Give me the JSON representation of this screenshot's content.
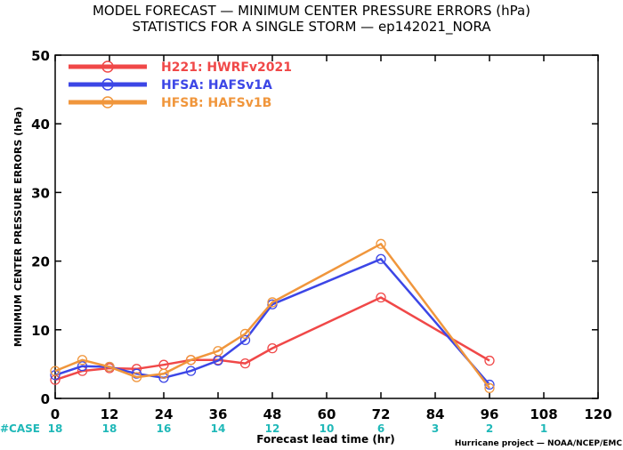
{
  "chart_data": {
    "type": "line",
    "title": "MODEL FORECAST — MINIMUM CENTER PRESSURE ERRORS (hPa)",
    "subtitle": "STATISTICS FOR A SINGLE STORM — ep142021_NORA",
    "xlabel": "Forecast lead time (hr)",
    "ylabel": "MINIMUM CENTER PRESSURE ERRORS (hPa)",
    "xlim": [
      0,
      120
    ],
    "ylim": [
      0,
      50
    ],
    "xticks": [
      0,
      12,
      24,
      36,
      48,
      60,
      72,
      84,
      96,
      108,
      120
    ],
    "yticks": [
      0,
      10,
      20,
      30,
      40,
      50
    ],
    "legend_position": "top-left",
    "case_label": "#CASE",
    "cases": [
      {
        "x": 0,
        "n": "18"
      },
      {
        "x": 12,
        "n": "18"
      },
      {
        "x": 24,
        "n": "16"
      },
      {
        "x": 36,
        "n": "14"
      },
      {
        "x": 48,
        "n": "12"
      },
      {
        "x": 60,
        "n": "10"
      },
      {
        "x": 72,
        "n": "6"
      },
      {
        "x": 84,
        "n": "3"
      },
      {
        "x": 96,
        "n": "2"
      },
      {
        "x": 108,
        "n": "1"
      }
    ],
    "credit": "Hurricane project — NOAA/NCEP/EMC",
    "series": [
      {
        "name": "H221: HWRFv2021",
        "color": "#f04848",
        "x": [
          0,
          6,
          12,
          18,
          24,
          30,
          36,
          42,
          48,
          72,
          96
        ],
        "y": [
          2.7,
          4.0,
          4.4,
          4.3,
          4.9,
          5.6,
          5.6,
          5.1,
          7.3,
          14.7,
          5.5
        ]
      },
      {
        "name": "HFSA: HAFSv1A",
        "color": "#3c46e6",
        "x": [
          0,
          6,
          12,
          18,
          24,
          30,
          36,
          42,
          48,
          72,
          96
        ],
        "y": [
          3.4,
          4.7,
          4.6,
          3.6,
          3.0,
          4.0,
          5.5,
          8.5,
          13.7,
          20.3,
          2.0
        ]
      },
      {
        "name": "HFSB: HAFSv1B",
        "color": "#f0963c",
        "x": [
          0,
          6,
          12,
          18,
          24,
          30,
          36,
          42,
          48,
          72,
          96
        ],
        "y": [
          4.0,
          5.6,
          4.6,
          3.1,
          3.6,
          5.6,
          6.9,
          9.4,
          14.0,
          22.5,
          1.5
        ]
      }
    ]
  }
}
